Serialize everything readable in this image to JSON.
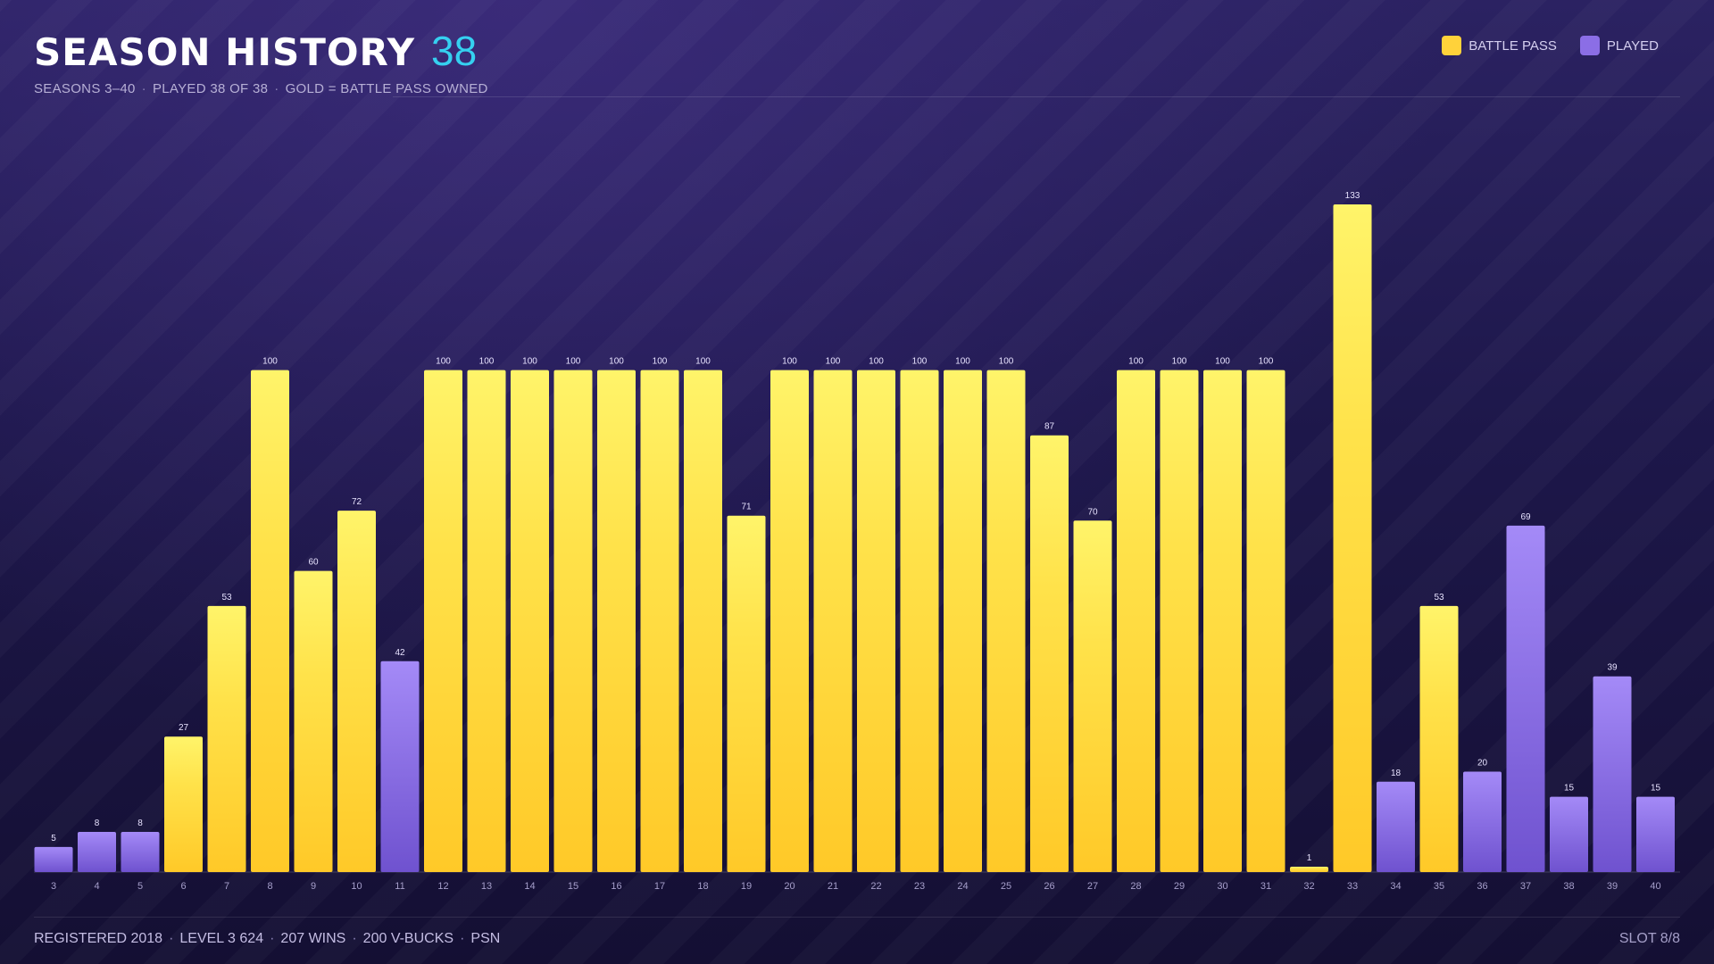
{
  "header": {
    "title": "SEASON HISTORY",
    "count": "38",
    "subtitle_parts": [
      "SEASONS 3–40",
      "PLAYED 38 OF 38",
      "GOLD = BATTLE PASS OWNED"
    ]
  },
  "legend": [
    {
      "label": "BATTLE PASS",
      "color": "#ffd23a"
    },
    {
      "label": "PLAYED",
      "color": "#8b6ee6"
    }
  ],
  "footer": {
    "parts": [
      "REGISTERED 2018",
      "LEVEL 3 624",
      "207 WINS",
      "200 V-BUCKS",
      "PSN"
    ],
    "slot": "SLOT 8/8"
  },
  "colors": {
    "battle_pass": "#ffd23a",
    "played": "#8b6ee6",
    "accent": "#35d0f0"
  },
  "chart_data": {
    "type": "bar",
    "categories": [
      "3",
      "4",
      "5",
      "6",
      "7",
      "8",
      "9",
      "10",
      "11",
      "12",
      "13",
      "14",
      "15",
      "16",
      "17",
      "18",
      "19",
      "20",
      "21",
      "22",
      "23",
      "24",
      "25",
      "26",
      "27",
      "28",
      "29",
      "30",
      "31",
      "32",
      "33",
      "34",
      "35",
      "36",
      "37",
      "38",
      "39",
      "40"
    ],
    "series": [
      {
        "name": "BATTLE PASS / PLAYED",
        "values": [
          5,
          8,
          8,
          27,
          53,
          100,
          60,
          72,
          42,
          100,
          100,
          100,
          100,
          100,
          100,
          100,
          71,
          100,
          100,
          100,
          100,
          100,
          100,
          87,
          70,
          100,
          100,
          100,
          100,
          1,
          133,
          18,
          53,
          20,
          69,
          15,
          39,
          15
        ],
        "battle_pass": [
          false,
          false,
          false,
          true,
          true,
          true,
          true,
          true,
          false,
          true,
          true,
          true,
          true,
          true,
          true,
          true,
          true,
          true,
          true,
          true,
          true,
          true,
          true,
          true,
          true,
          true,
          true,
          true,
          true,
          true,
          true,
          false,
          true,
          false,
          false,
          false,
          false,
          false
        ]
      }
    ],
    "ylim": [
      0,
      133
    ],
    "grid": false,
    "legend_position": "top-right"
  }
}
